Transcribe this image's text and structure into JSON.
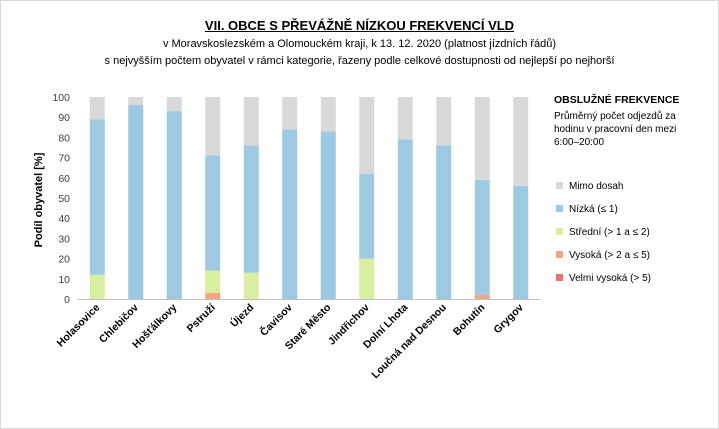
{
  "chart_data": {
    "type": "bar",
    "stacked": true,
    "title": "VII. OBCE S PŘEVÁŽNĚ NÍZKOU FREKVENCÍ VLD",
    "subtitle_lines": [
      "v Moravskoslezském a Olomouckém kraji, k 13. 12. 2020 (platnost jízdních řádů)",
      "s nejvyšším počtem  obyvatel v rámci kategorie, řazeny podle celkové dostupnosti od nejlepší po nejhorší"
    ],
    "ylabel": "Podíl obyvatel [%]",
    "ylim": [
      0,
      100
    ],
    "yticks": [
      0,
      10,
      20,
      30,
      40,
      50,
      60,
      70,
      80,
      90,
      100
    ],
    "categories": [
      "Holasovice",
      "Chlebičov",
      "Hošťálkovy",
      "Pstruží",
      "Újezd",
      "Čavisov",
      "Staré Město",
      "Jindřichov",
      "Dolní Lhota",
      "Loučná nad Desnou",
      "Bohutín",
      "Grygov"
    ],
    "series": [
      {
        "name": "Velmi vysoká (> 5)",
        "color": "#e57373",
        "values": [
          0,
          0,
          0,
          0,
          0,
          0,
          0,
          0,
          0,
          0,
          0,
          0
        ]
      },
      {
        "name": "Vysoká (> 2 a ≤ 5)",
        "color": "#f4a582",
        "values": [
          0,
          0,
          0,
          3,
          0,
          0,
          0,
          0,
          0,
          0,
          2,
          0
        ]
      },
      {
        "name": "Střední (> 1 a ≤ 2)",
        "color": "#d9ef9f",
        "values": [
          12,
          0,
          0,
          11,
          13,
          0,
          0,
          20,
          0,
          0,
          0,
          0
        ]
      },
      {
        "name": "Nízká (≤ 1)",
        "color": "#9ecae1",
        "values": [
          77,
          96,
          93,
          57,
          63,
          84,
          83,
          42,
          79,
          76,
          57,
          56
        ]
      },
      {
        "name": "Mimo dosah",
        "color": "#d9d9d9",
        "values": [
          11,
          4,
          7,
          29,
          24,
          16,
          17,
          38,
          21,
          24,
          41,
          44
        ]
      }
    ],
    "legend": {
      "position": "right",
      "title": "OBSLUŽNÉ  FREKVENCE",
      "description": "Průměrný počet odjezdů za hodinu v pracovní den mezi 6:00–20:00",
      "order": [
        "Mimo dosah",
        "Nízká (≤ 1)",
        "Střední (> 1 a ≤ 2)",
        "Vysoká (> 2 a ≤ 5)",
        "Velmi vysoká (> 5)"
      ]
    },
    "grid": false
  }
}
